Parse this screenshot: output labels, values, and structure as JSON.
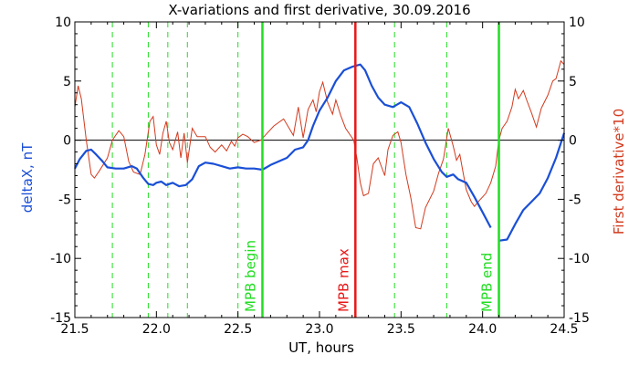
{
  "chart_data": {
    "type": "line",
    "title": "X-variations and first derivative, 30.09.2016",
    "xlabel": "UT, hours",
    "ylabel_left": "deltaX, nT",
    "ylabel_right": "First derivative*10",
    "xlim": [
      21.5,
      24.5
    ],
    "ylim": [
      -15,
      10
    ],
    "x_ticks": [
      "21.5",
      "22.0",
      "22.5",
      "23.0",
      "23.5",
      "24.0",
      "24.5"
    ],
    "y_ticks": [
      "10",
      "5",
      "0",
      "-5",
      "-10",
      "-15"
    ],
    "colors": {
      "deltaX": "#1a4fd6",
      "derivative": "#d23a1e",
      "markers_green": "#22dd22",
      "marker_red": "#e81818",
      "axis": "#000000"
    },
    "series": [
      {
        "key": "deltaX",
        "segments": [
          [
            [
              21.5,
              -2.4
            ],
            [
              21.53,
              -1.6
            ],
            [
              21.57,
              -0.9
            ],
            [
              21.6,
              -0.8
            ],
            [
              21.63,
              -1.2
            ],
            [
              21.67,
              -1.8
            ],
            [
              21.7,
              -2.3
            ],
            [
              21.75,
              -2.4
            ],
            [
              21.8,
              -2.4
            ],
            [
              21.85,
              -2.2
            ],
            [
              21.88,
              -2.4
            ],
            [
              21.92,
              -3.2
            ],
            [
              21.95,
              -3.7
            ],
            [
              21.98,
              -3.8
            ],
            [
              22.0,
              -3.6
            ],
            [
              22.03,
              -3.5
            ],
            [
              22.06,
              -3.8
            ],
            [
              22.1,
              -3.6
            ],
            [
              22.14,
              -3.9
            ],
            [
              22.18,
              -3.8
            ],
            [
              22.22,
              -3.3
            ],
            [
              22.26,
              -2.2
            ],
            [
              22.3,
              -1.9
            ],
            [
              22.35,
              -2.0
            ],
            [
              22.4,
              -2.2
            ],
            [
              22.45,
              -2.4
            ],
            [
              22.5,
              -2.3
            ],
            [
              22.55,
              -2.4
            ],
            [
              22.6,
              -2.4
            ],
            [
              22.65,
              -2.5
            ],
            [
              22.7,
              -2.1
            ],
            [
              22.75,
              -1.8
            ],
            [
              22.8,
              -1.5
            ],
            [
              22.85,
              -0.8
            ],
            [
              22.9,
              -0.6
            ],
            [
              22.93,
              0.0
            ],
            [
              22.96,
              1.2
            ],
            [
              23.0,
              2.5
            ],
            [
              23.05,
              3.6
            ],
            [
              23.1,
              5.0
            ],
            [
              23.15,
              5.9
            ],
            [
              23.2,
              6.2
            ],
            [
              23.25,
              6.4
            ],
            [
              23.28,
              5.9
            ],
            [
              23.32,
              4.6
            ],
            [
              23.36,
              3.6
            ],
            [
              23.4,
              3.0
            ],
            [
              23.45,
              2.8
            ],
            [
              23.5,
              3.2
            ],
            [
              23.55,
              2.8
            ],
            [
              23.6,
              1.4
            ],
            [
              23.65,
              -0.2
            ],
            [
              23.7,
              -1.6
            ],
            [
              23.75,
              -2.7
            ],
            [
              23.78,
              -3.1
            ],
            [
              23.82,
              -2.9
            ],
            [
              23.85,
              -3.3
            ],
            [
              23.9,
              -3.6
            ],
            [
              23.95,
              -4.8
            ],
            [
              24.0,
              -6.1
            ],
            [
              24.05,
              -7.4
            ]
          ],
          [
            [
              24.1,
              -8.5
            ],
            [
              24.15,
              -8.4
            ],
            [
              24.2,
              -7.1
            ],
            [
              24.25,
              -5.9
            ],
            [
              24.3,
              -5.2
            ],
            [
              24.35,
              -4.5
            ],
            [
              24.4,
              -3.2
            ],
            [
              24.45,
              -1.5
            ],
            [
              24.5,
              0.6
            ]
          ]
        ]
      },
      {
        "key": "derivative",
        "points": [
          [
            21.5,
            2.8
          ],
          [
            21.52,
            4.6
          ],
          [
            21.54,
            3.5
          ],
          [
            21.57,
            0.0
          ],
          [
            21.6,
            -2.9
          ],
          [
            21.62,
            -3.2
          ],
          [
            21.65,
            -2.6
          ],
          [
            21.7,
            -1.5
          ],
          [
            21.73,
            0.0
          ],
          [
            21.77,
            0.8
          ],
          [
            21.8,
            0.3
          ],
          [
            21.83,
            -1.8
          ],
          [
            21.86,
            -2.7
          ],
          [
            21.9,
            -2.9
          ],
          [
            21.93,
            -1.2
          ],
          [
            21.96,
            1.6
          ],
          [
            21.98,
            2.0
          ],
          [
            22.0,
            -0.4
          ],
          [
            22.02,
            -1.2
          ],
          [
            22.04,
            0.6
          ],
          [
            22.06,
            1.6
          ],
          [
            22.08,
            -0.2
          ],
          [
            22.1,
            -0.8
          ],
          [
            22.13,
            0.7
          ],
          [
            22.15,
            -1.5
          ],
          [
            22.17,
            0.6
          ],
          [
            22.19,
            -1.9
          ],
          [
            22.22,
            1.0
          ],
          [
            22.25,
            0.3
          ],
          [
            22.3,
            0.3
          ],
          [
            22.33,
            -0.6
          ],
          [
            22.36,
            -1.0
          ],
          [
            22.4,
            -0.4
          ],
          [
            22.43,
            -0.9
          ],
          [
            22.46,
            -0.1
          ],
          [
            22.48,
            -0.5
          ],
          [
            22.5,
            0.2
          ],
          [
            22.53,
            0.5
          ],
          [
            22.56,
            0.3
          ],
          [
            22.6,
            -0.2
          ],
          [
            22.64,
            0.0
          ],
          [
            22.68,
            0.6
          ],
          [
            22.72,
            1.2
          ],
          [
            22.78,
            1.8
          ],
          [
            22.84,
            0.4
          ],
          [
            22.87,
            2.8
          ],
          [
            22.9,
            0.2
          ],
          [
            22.93,
            2.6
          ],
          [
            22.96,
            3.4
          ],
          [
            22.98,
            2.4
          ],
          [
            23.0,
            4.1
          ],
          [
            23.02,
            4.9
          ],
          [
            23.05,
            3.2
          ],
          [
            23.08,
            2.2
          ],
          [
            23.1,
            3.4
          ],
          [
            23.13,
            2.1
          ],
          [
            23.16,
            1.0
          ],
          [
            23.19,
            0.4
          ],
          [
            23.21,
            0.0
          ],
          [
            23.23,
            -1.6
          ],
          [
            23.25,
            -3.6
          ],
          [
            23.27,
            -4.7
          ],
          [
            23.3,
            -4.5
          ],
          [
            23.33,
            -2.0
          ],
          [
            23.36,
            -1.5
          ],
          [
            23.4,
            -3.0
          ],
          [
            23.42,
            -0.8
          ],
          [
            23.45,
            0.4
          ],
          [
            23.48,
            0.7
          ],
          [
            23.5,
            -0.2
          ],
          [
            23.53,
            -2.9
          ],
          [
            23.56,
            -4.9
          ],
          [
            23.59,
            -7.4
          ],
          [
            23.62,
            -7.5
          ],
          [
            23.65,
            -5.7
          ],
          [
            23.7,
            -4.3
          ],
          [
            23.73,
            -2.8
          ],
          [
            23.76,
            -1.6
          ],
          [
            23.79,
            1.0
          ],
          [
            23.82,
            -0.5
          ],
          [
            23.84,
            -1.7
          ],
          [
            23.86,
            -1.2
          ],
          [
            23.88,
            -2.7
          ],
          [
            23.9,
            -4.2
          ],
          [
            23.93,
            -5.2
          ],
          [
            23.95,
            -5.6
          ],
          [
            23.98,
            -5.1
          ],
          [
            24.0,
            -4.8
          ],
          [
            24.02,
            -4.5
          ],
          [
            24.05,
            -3.6
          ],
          [
            24.08,
            -2.2
          ],
          [
            24.1,
            0.0
          ],
          [
            24.12,
            1.0
          ],
          [
            24.15,
            1.6
          ],
          [
            24.18,
            2.8
          ],
          [
            24.2,
            4.3
          ],
          [
            24.22,
            3.5
          ],
          [
            24.25,
            4.2
          ],
          [
            24.27,
            3.4
          ],
          [
            24.3,
            2.3
          ],
          [
            24.33,
            1.1
          ],
          [
            24.36,
            2.7
          ],
          [
            24.4,
            3.8
          ],
          [
            24.43,
            5.0
          ],
          [
            24.45,
            5.2
          ],
          [
            24.48,
            6.7
          ],
          [
            24.5,
            6.4
          ]
        ]
      }
    ],
    "dashed_verticals": [
      21.73,
      21.95,
      22.07,
      22.19,
      22.5,
      23.46,
      23.78
    ],
    "markers": [
      {
        "x": 22.65,
        "label": "MPB begin",
        "color": "#22dd22"
      },
      {
        "x": 23.22,
        "label": "MPB max",
        "color": "#e81818"
      },
      {
        "x": 24.1,
        "label": "MPB end",
        "color": "#22dd22"
      }
    ]
  }
}
